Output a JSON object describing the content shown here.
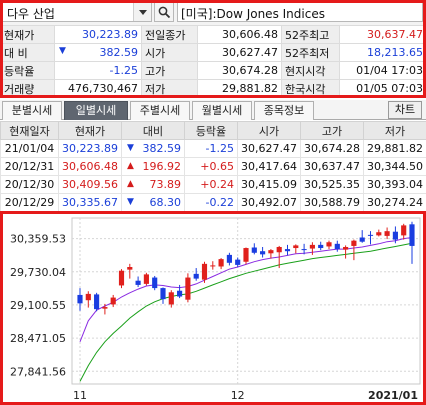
{
  "search": {
    "symbol": "다우 산업",
    "name": "[미국]:Dow Jones Indices"
  },
  "quote": {
    "rows": [
      [
        "현재가",
        "30,223.89",
        "전일종가",
        "30,606.48",
        "52주최고",
        "30,637.47"
      ],
      [
        "대  비",
        "382.59",
        "시가",
        "30,627.47",
        "52주최저",
        "18,213.65"
      ],
      [
        "등락율",
        "-1.25",
        "고가",
        "30,674.28",
        "현지시각",
        "01/04 17:03"
      ],
      [
        "거래량",
        "476,730,467",
        "저가",
        "29,881.82",
        "한국시각",
        "01/05 07:03"
      ]
    ],
    "change_arrow": "▼"
  },
  "tabs": {
    "items": [
      "분별시세",
      "일별시세",
      "주별시세",
      "월별시세",
      "종목정보"
    ],
    "active": "일별시세",
    "chart_button": "차트"
  },
  "daily": {
    "headers": [
      "현재일자",
      "현재가",
      "대비",
      "등락율",
      "시가",
      "고가",
      "저가"
    ],
    "rows": [
      {
        "date": "21/01/04",
        "price": "30,223.89",
        "arrow": "▼",
        "change": "382.59",
        "rate": "-1.25",
        "open": "30,627.47",
        "high": "30,674.28",
        "low": "29,881.82",
        "dir": "down"
      },
      {
        "date": "20/12/31",
        "price": "30,606.48",
        "arrow": "▲",
        "change": "196.92",
        "rate": "+0.65",
        "open": "30,417.64",
        "high": "30,637.47",
        "low": "30,344.50",
        "dir": "up"
      },
      {
        "date": "20/12/30",
        "price": "30,409.56",
        "arrow": "▲",
        "change": "73.89",
        "rate": "+0.24",
        "open": "30,415.09",
        "high": "30,525.35",
        "low": "30,393.04",
        "dir": "up"
      },
      {
        "date": "20/12/29",
        "price": "30,335.67",
        "arrow": "▼",
        "change": "68.30",
        "rate": "-0.22",
        "open": "30,492.07",
        "high": "30,588.79",
        "low": "30,274.24",
        "dir": "down"
      }
    ]
  },
  "chart_data": {
    "type": "candlestick",
    "y_ticks": [
      "30,359.53",
      "29,730.04",
      "29,100.55",
      "28,471.05",
      "27,841.56"
    ],
    "x_ticks": [
      "11",
      "12",
      "2021/01"
    ],
    "ylim": [
      27600,
      30750
    ],
    "up_color": "#e0201c",
    "down_color": "#1a3de0",
    "ma_colors": [
      "#8a2be2",
      "#1aa01a"
    ],
    "candles": [
      [
        29290,
        29420,
        28990,
        29130
      ],
      [
        29190,
        29360,
        29050,
        29310
      ],
      [
        29300,
        29330,
        28980,
        29020
      ],
      [
        29030,
        29120,
        28920,
        29060
      ],
      [
        29110,
        29290,
        29060,
        29240
      ],
      [
        29470,
        29780,
        29420,
        29750
      ],
      [
        29770,
        29880,
        29600,
        29820
      ],
      [
        29560,
        29640,
        29440,
        29480
      ],
      [
        29500,
        29710,
        29470,
        29680
      ],
      [
        29620,
        29650,
        29380,
        29420
      ],
      [
        29420,
        29430,
        29120,
        29210
      ],
      [
        29110,
        29380,
        29050,
        29340
      ],
      [
        29370,
        29480,
        29230,
        29260
      ],
      [
        29200,
        29700,
        29150,
        29620
      ],
      [
        29690,
        29800,
        29560,
        29600
      ],
      [
        29580,
        29920,
        29520,
        29880
      ],
      [
        29840,
        29930,
        29770,
        29850
      ],
      [
        29830,
        29990,
        29780,
        29970
      ],
      [
        30050,
        30090,
        29850,
        29900
      ],
      [
        29960,
        30000,
        29820,
        29860
      ],
      [
        29920,
        30190,
        29870,
        30180
      ],
      [
        30190,
        30270,
        30060,
        30090
      ],
      [
        30120,
        30200,
        30000,
        30060
      ],
      [
        30080,
        30160,
        29980,
        30140
      ],
      [
        30100,
        30220,
        29800,
        30200
      ],
      [
        30160,
        30240,
        30040,
        30120
      ],
      [
        30180,
        30250,
        30080,
        30230
      ],
      [
        30160,
        30260,
        30060,
        30150
      ],
      [
        30170,
        30290,
        30050,
        30240
      ],
      [
        30240,
        30300,
        30140,
        30180
      ],
      [
        30210,
        30320,
        30160,
        30290
      ],
      [
        30260,
        30320,
        30110,
        30160
      ],
      [
        30150,
        30230,
        29980,
        30200
      ],
      [
        30220,
        30340,
        29950,
        30320
      ],
      [
        30380,
        30520,
        30280,
        30300
      ],
      [
        30430,
        30500,
        30250,
        30420
      ],
      [
        30420,
        30530,
        30400,
        30480
      ],
      [
        30410,
        30570,
        30350,
        30500
      ],
      [
        30490,
        30590,
        30270,
        30340
      ],
      [
        30420,
        30640,
        30340,
        30610
      ],
      [
        30630,
        30680,
        29880,
        30220
      ]
    ],
    "ma1": [
      28400,
      28800,
      29000,
      29080,
      29150,
      29250,
      29330,
      29400,
      29460,
      29480,
      29470,
      29440,
      29430,
      29450,
      29500,
      29570,
      29640,
      29710,
      29780,
      29820,
      29870,
      29920,
      29960,
      29990,
      30010,
      30040,
      30070,
      30080,
      30100,
      30120,
      30140,
      30160,
      30160,
      30180,
      30200,
      30230,
      30260,
      30300,
      30320,
      30360,
      30380
    ],
    "ma2": [
      27650,
      27950,
      28200,
      28400,
      28560,
      28700,
      28850,
      28970,
      29080,
      29160,
      29220,
      29260,
      29290,
      29310,
      29360,
      29420,
      29480,
      29540,
      29600,
      29650,
      29700,
      29740,
      29780,
      29820,
      29860,
      29890,
      29920,
      29950,
      29980,
      30000,
      30020,
      30040,
      30060,
      30080,
      30100,
      30120,
      30150,
      30180,
      30210,
      30240,
      30270
    ]
  }
}
